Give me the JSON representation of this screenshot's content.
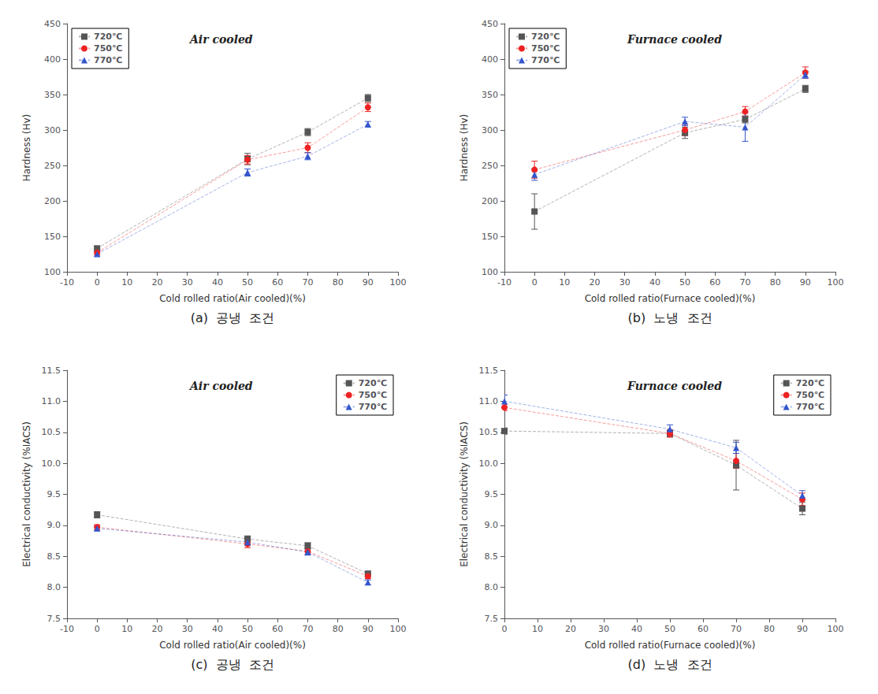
{
  "chart_data": [
    {
      "type": "line",
      "title": "Air cooled",
      "annotations": [
        "(a)  공냉  조건"
      ],
      "x": [
        0,
        50,
        70,
        90
      ],
      "xlabel": "Cold rolled ratio(Air cooled)(%)",
      "ylabel": "Hardness (Hv)",
      "xlim": [
        -10,
        100
      ],
      "xticks": [
        -10,
        0,
        10,
        20,
        30,
        40,
        50,
        60,
        70,
        80,
        90,
        100
      ],
      "ylim": [
        100,
        450
      ],
      "yticks": [
        100,
        150,
        200,
        250,
        300,
        350,
        400,
        450
      ],
      "grid": false,
      "legend": "upper left",
      "line_style": "dashed",
      "series": [
        {
          "name": "720℃",
          "color": "#555555",
          "marker": "square",
          "values": [
            133,
            259,
            297,
            345
          ],
          "yerr": [
            3,
            8,
            5,
            5
          ]
        },
        {
          "name": "750℃",
          "color": "#ee2222",
          "marker": "circle",
          "values": [
            127,
            258,
            275,
            332
          ],
          "yerr": [
            3,
            6,
            7,
            6
          ]
        },
        {
          "name": "770℃",
          "color": "#3355cc",
          "marker": "triangle",
          "values": [
            125,
            240,
            263,
            308
          ],
          "yerr": [
            3,
            5,
            5,
            4
          ]
        }
      ]
    },
    {
      "type": "line",
      "title": "Furnace cooled",
      "annotations": [
        "(b)  노냉  조건"
      ],
      "x": [
        0,
        50,
        70,
        90
      ],
      "xlabel": "Cold rolled ratio(Furnace cooled)(%)",
      "ylabel": "Hardness (Hv)",
      "xlim": [
        -10,
        100
      ],
      "xticks": [
        -10,
        0,
        10,
        20,
        30,
        40,
        50,
        60,
        70,
        80,
        90,
        100
      ],
      "ylim": [
        100,
        450
      ],
      "yticks": [
        100,
        150,
        200,
        250,
        300,
        350,
        400,
        450
      ],
      "grid": false,
      "legend": "upper left",
      "line_style": "dashed",
      "series": [
        {
          "name": "720℃",
          "color": "#555555",
          "marker": "square",
          "values": [
            185,
            296,
            315,
            358
          ],
          "yerr": [
            25,
            8,
            5,
            5
          ]
        },
        {
          "name": "750℃",
          "color": "#ee2222",
          "marker": "circle",
          "values": [
            244,
            300,
            326,
            381
          ],
          "yerr": [
            12,
            8,
            7,
            8
          ]
        },
        {
          "name": "770℃",
          "color": "#3355cc",
          "marker": "triangle",
          "values": [
            237,
            312,
            304,
            378
          ],
          "yerr": [
            8,
            6,
            20,
            5
          ]
        }
      ]
    },
    {
      "type": "line",
      "title": "Air cooled",
      "annotations": [
        "(c)  공냉  조건"
      ],
      "x": [
        0,
        50,
        70,
        90
      ],
      "xlabel": "Cold rolled ratio(Air cooled)(%)",
      "ylabel": "Electrical conductivity (%IACS)",
      "xlim": [
        -10,
        100
      ],
      "xticks": [
        -10,
        0,
        10,
        20,
        30,
        40,
        50,
        60,
        70,
        80,
        90,
        100
      ],
      "ylim": [
        7.5,
        11.5
      ],
      "yticks": [
        7.5,
        {
          "value": 8.0,
          "label": "8.0"
        },
        8.5,
        {
          "value": 9.0,
          "label": "9.0"
        },
        9.5,
        {
          "value": 10.0,
          "label": "10.0"
        },
        10.5,
        {
          "value": 11.0,
          "label": "11.0"
        },
        11.5
      ],
      "grid": false,
      "legend": "upper right",
      "line_style": "dashed",
      "series": [
        {
          "name": "720℃",
          "color": "#555555",
          "marker": "square",
          "values": [
            9.17,
            8.78,
            8.67,
            8.22
          ],
          "yerr": [
            0.05,
            0.05,
            0.05,
            0.04
          ]
        },
        {
          "name": "750℃",
          "color": "#ee2222",
          "marker": "circle",
          "values": [
            8.97,
            8.7,
            8.58,
            8.18
          ],
          "yerr": [
            0.04,
            0.06,
            0.05,
            0.04
          ]
        },
        {
          "name": "770℃",
          "color": "#3355cc",
          "marker": "triangle",
          "values": [
            8.95,
            8.73,
            8.57,
            8.08
          ],
          "yerr": [
            0.04,
            0.05,
            0.05,
            0.04
          ]
        }
      ]
    },
    {
      "type": "line",
      "title": "Furnace cooled",
      "annotations": [
        "(d)  노냉  조건"
      ],
      "x": [
        0,
        50,
        70,
        90
      ],
      "xlabel": "Cold rolled ratio(Furnace cooled)(%)",
      "ylabel": "Electrical conductivity (%IACS)",
      "xlim": [
        0,
        100
      ],
      "xticks": [
        0,
        10,
        20,
        30,
        40,
        50,
        60,
        70,
        80,
        90,
        100
      ],
      "ylim": [
        7.5,
        11.5
      ],
      "yticks": [
        7.5,
        {
          "value": 8.0,
          "label": "8.0"
        },
        8.5,
        {
          "value": 9.0,
          "label": "9.0"
        },
        9.5,
        {
          "value": 10.0,
          "label": "10.0"
        },
        10.5,
        {
          "value": 11.0,
          "label": "11.0"
        },
        11.5
      ],
      "grid": false,
      "legend": "upper right",
      "line_style": "dashed",
      "series": [
        {
          "name": "720℃",
          "color": "#555555",
          "marker": "square",
          "values": [
            10.52,
            10.48,
            9.97,
            9.27
          ],
          "yerr": [
            0.05,
            0.05,
            0.4,
            0.1
          ]
        },
        {
          "name": "750℃",
          "color": "#ee2222",
          "marker": "circle",
          "values": [
            10.9,
            10.48,
            10.04,
            9.42
          ],
          "yerr": [
            0.05,
            0.06,
            0.12,
            0.1
          ]
        },
        {
          "name": "770℃",
          "color": "#3355cc",
          "marker": "triangle",
          "values": [
            11.0,
            10.55,
            10.25,
            9.48
          ],
          "yerr": [
            0.1,
            0.07,
            0.09,
            0.08
          ]
        }
      ]
    }
  ]
}
